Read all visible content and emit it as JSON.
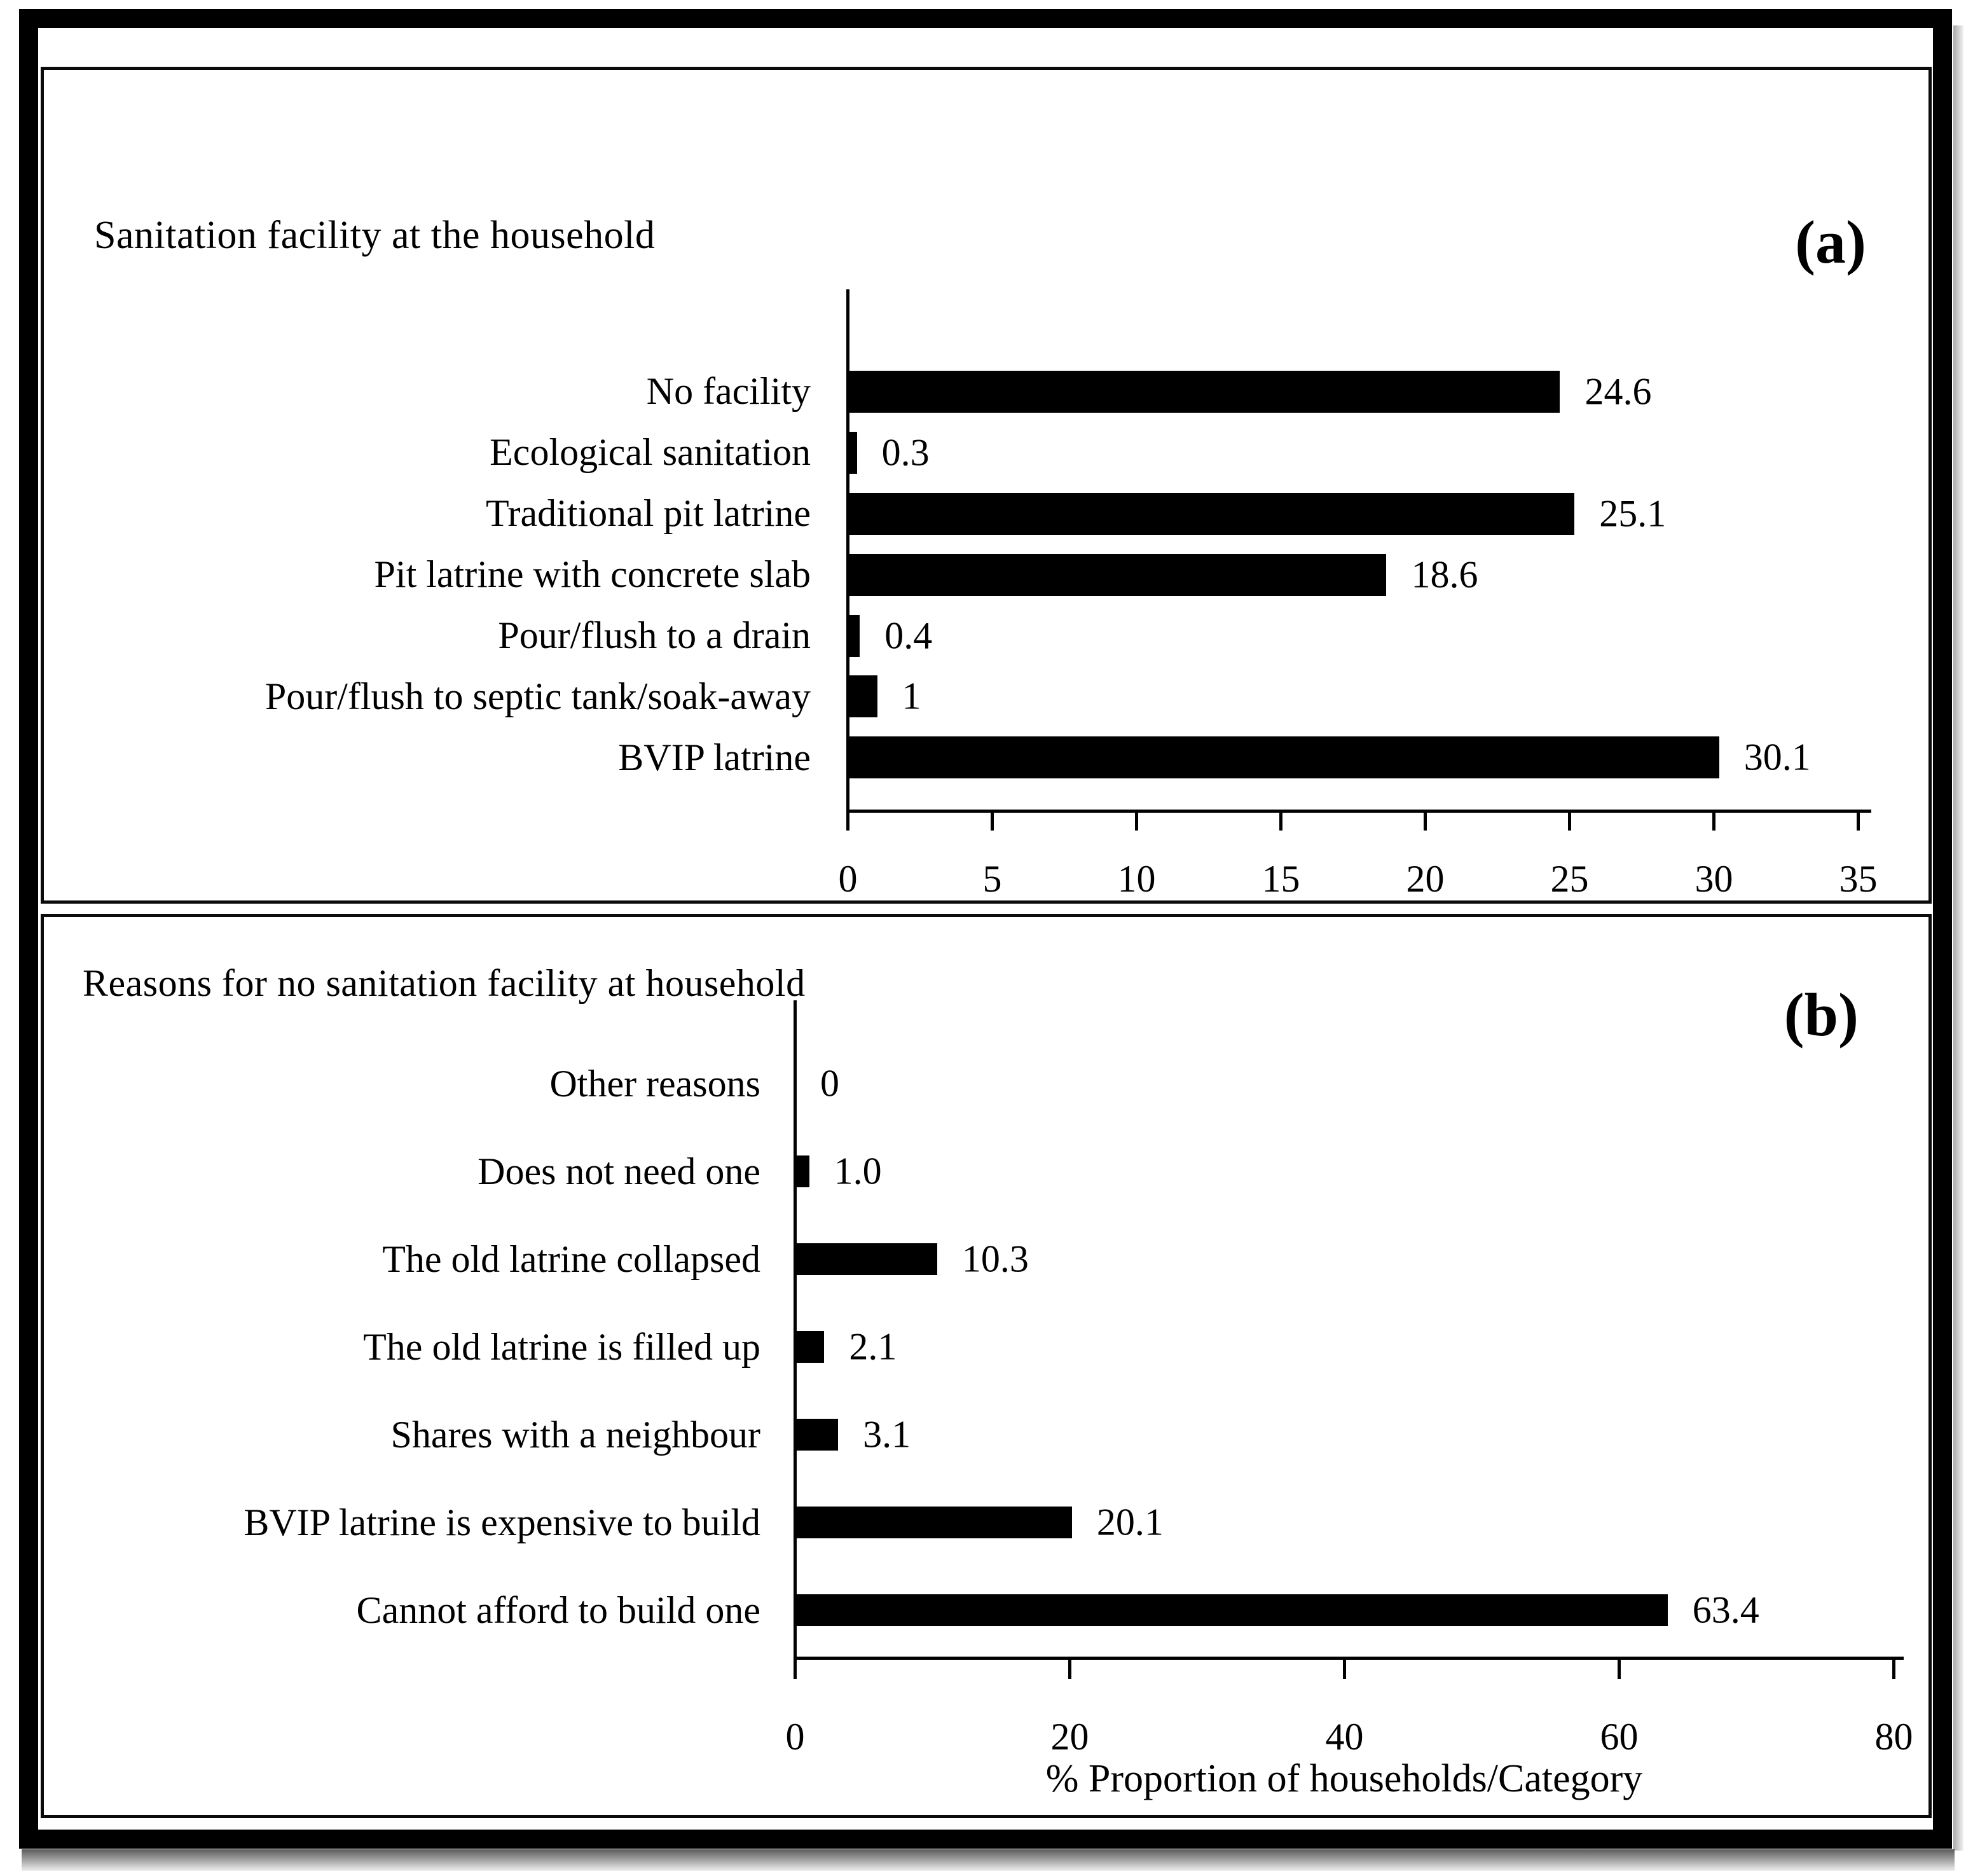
{
  "figure": {
    "background": "#ffffff",
    "frame_color": "#000000",
    "bar_color": "#000000"
  },
  "chart_data": [
    {
      "type": "bar",
      "orientation": "horizontal",
      "marker": "(a)",
      "title": "Sanitation facility at the household",
      "categories": [
        "No facility",
        "Ecological sanitation",
        "Traditional pit latrine",
        "Pit latrine with concrete slab",
        "Pour/flush to a drain",
        "Pour/flush to septic tank/soak-away",
        "BVIP latrine"
      ],
      "values": [
        24.6,
        0.3,
        25.1,
        18.6,
        0.4,
        1,
        30.1
      ],
      "value_labels": [
        "24.6",
        "0.3",
        "25.1",
        "18.6",
        "0.4",
        "1",
        "30.1"
      ],
      "ticks": [
        0,
        5,
        10,
        15,
        20,
        25,
        30,
        35
      ],
      "tick_labels": [
        "0",
        "5",
        "10",
        "15",
        "20",
        "25",
        "30",
        "35"
      ],
      "xlim": [
        0,
        35
      ],
      "xlabel": "",
      "grid": false,
      "legend": "none",
      "bar_color": "#000000"
    },
    {
      "type": "bar",
      "orientation": "horizontal",
      "marker": "(b)",
      "title": "Reasons for no sanitation facility at household",
      "categories": [
        "Other reasons",
        "Does not need one",
        "The old latrine collapsed",
        "The old latrine is filled up",
        "Shares with a neighbour",
        "BVIP latrine is expensive to build",
        "Cannot afford to build one"
      ],
      "values": [
        0,
        1.0,
        10.3,
        2.1,
        3.1,
        20.1,
        63.4
      ],
      "value_labels": [
        "0",
        "1.0",
        "10.3",
        "2.1",
        "3.1",
        "20.1",
        "63.4"
      ],
      "ticks": [
        0,
        20,
        40,
        60,
        80
      ],
      "tick_labels": [
        "0",
        "20",
        "40",
        "60",
        "80"
      ],
      "xlim": [
        0,
        80
      ],
      "xlabel": "% Proportion of households/Category",
      "grid": false,
      "legend": "none",
      "bar_color": "#000000"
    }
  ]
}
